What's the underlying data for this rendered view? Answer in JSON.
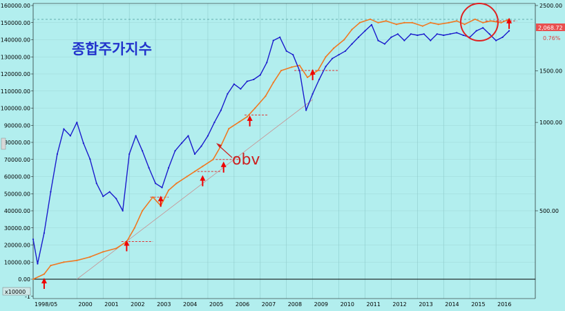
{
  "chart_data": {
    "type": "line",
    "title": "종합주가지수",
    "annotation": "obv",
    "left_axis": {
      "ticks": [
        "160000.00",
        "150000.00",
        "140000.00",
        "130000.00",
        "120000.00",
        "110000.00",
        "100000.00",
        "90000.00",
        "80000.00",
        "70000.00",
        "60000.00",
        "50000.00",
        "40000.00",
        "30000.00",
        "20000.00",
        "10000.00",
        "0.00",
        "-1"
      ],
      "ylim": [
        -10000,
        160000
      ]
    },
    "right_axis": {
      "scale": "log",
      "ticks": [
        "2500.00",
        "1500.00",
        "1000.00",
        "500.00"
      ],
      "tick_values": [
        2500,
        1500,
        1000,
        500
      ],
      "ylim": [
        280,
        2500
      ],
      "last_value": "2,068.72",
      "last_change": "0.76%"
    },
    "x_axis": {
      "ticks": [
        "1998/05",
        "2000",
        "2001",
        "2002",
        "2003",
        "2004",
        "2005",
        "2006",
        "2007",
        "2008",
        "2009",
        "2010",
        "2011",
        "2012",
        "2013",
        "2014",
        "2015",
        "2016"
      ],
      "xlim": [
        1998.33,
        2017.5
      ]
    },
    "unit_label": "x10000",
    "colors": {
      "background": "#b2eeee",
      "price": "#1a1acc",
      "obv": "#f07820",
      "marker": "#ee0000",
      "title": "#2233cc",
      "badge": "#e85050"
    },
    "series": [
      {
        "name": "종합주가지수",
        "axis": "right",
        "color": "#1a1acc",
        "x": [
          1998.33,
          1998.5,
          1998.75,
          1999.0,
          1999.25,
          1999.5,
          1999.75,
          2000.0,
          2000.25,
          2000.5,
          2000.75,
          2001.0,
          2001.25,
          2001.5,
          2001.75,
          2002.0,
          2002.25,
          2002.5,
          2002.75,
          2003.0,
          2003.25,
          2003.5,
          2003.75,
          2004.0,
          2004.25,
          2004.5,
          2004.75,
          2005.0,
          2005.25,
          2005.5,
          2005.75,
          2006.0,
          2006.25,
          2006.5,
          2006.75,
          2007.0,
          2007.25,
          2007.5,
          2007.75,
          2008.0,
          2008.25,
          2008.5,
          2008.75,
          2009.0,
          2009.25,
          2009.5,
          2009.75,
          2010.0,
          2010.25,
          2010.5,
          2010.75,
          2011.0,
          2011.25,
          2011.5,
          2011.75,
          2012.0,
          2012.25,
          2012.5,
          2012.75,
          2013.0,
          2013.25,
          2013.5,
          2013.75,
          2014.0,
          2014.25,
          2014.5,
          2014.75,
          2015.0,
          2015.25,
          2015.5,
          2015.75,
          2016.0,
          2016.25,
          2016.5
        ],
        "values": [
          400,
          330,
          420,
          580,
          780,
          950,
          900,
          1000,
          850,
          750,
          620,
          560,
          580,
          550,
          500,
          780,
          900,
          800,
          700,
          620,
          600,
          700,
          800,
          850,
          900,
          780,
          830,
          900,
          1000,
          1100,
          1250,
          1350,
          1300,
          1380,
          1400,
          1450,
          1600,
          1900,
          1950,
          1750,
          1700,
          1500,
          1100,
          1250,
          1400,
          1550,
          1650,
          1700,
          1750,
          1850,
          1950,
          2050,
          2150,
          1900,
          1850,
          1950,
          2000,
          1900,
          2000,
          1980,
          2000,
          1900,
          2000,
          1980,
          2000,
          2020,
          1980,
          1950,
          2050,
          2100,
          2000,
          1900,
          1950,
          2050
        ]
      },
      {
        "name": "obv",
        "axis": "left",
        "color": "#f07820",
        "x": [
          1998.33,
          1998.75,
          1999.0,
          1999.5,
          2000.0,
          2000.5,
          2001.0,
          2001.5,
          2001.9,
          2002.2,
          2002.5,
          2002.9,
          2003.2,
          2003.5,
          2003.8,
          2004.2,
          2004.5,
          2004.8,
          2005.2,
          2005.5,
          2005.8,
          2006.2,
          2006.5,
          2006.8,
          2007.2,
          2007.5,
          2007.8,
          2008.2,
          2008.5,
          2008.8,
          2009.2,
          2009.5,
          2009.8,
          2010.2,
          2010.5,
          2010.8,
          2011.2,
          2011.5,
          2011.8,
          2012.2,
          2012.5,
          2012.8,
          2013.2,
          2013.5,
          2013.8,
          2014.2,
          2014.5,
          2014.8,
          2015.2,
          2015.5,
          2015.8,
          2016.2,
          2016.5
        ],
        "values": [
          0,
          3000,
          8000,
          10000,
          11000,
          13000,
          16000,
          18000,
          22000,
          30000,
          40000,
          48000,
          43000,
          52000,
          56000,
          60000,
          63000,
          66000,
          70000,
          78000,
          88000,
          92000,
          95000,
          100000,
          107000,
          115000,
          122000,
          124000,
          125000,
          118000,
          122000,
          130000,
          135000,
          140000,
          146000,
          150000,
          152000,
          150000,
          151000,
          149000,
          150000,
          150000,
          148000,
          150000,
          149000,
          150000,
          151000,
          149000,
          152000,
          150000,
          151000,
          150000,
          152000
        ]
      }
    ],
    "trendline": {
      "x": [
        2000.0,
        2009.0
      ],
      "values": [
        0,
        105000
      ]
    },
    "buy_signals": [
      {
        "x": 1998.75,
        "value": 0
      },
      {
        "x": 2001.9,
        "value": 22000
      },
      {
        "x": 2003.2,
        "value": 48000
      },
      {
        "x": 2004.8,
        "value": 60000
      },
      {
        "x": 2005.6,
        "value": 68000
      },
      {
        "x": 2006.6,
        "value": 95000
      },
      {
        "x": 2009.0,
        "value": 122000
      },
      {
        "x": 2016.5,
        "value": 152000
      }
    ],
    "resistance_levels": [
      {
        "x1": 2001.7,
        "x2": 2002.9,
        "value": 22000
      },
      {
        "x1": 2002.8,
        "x2": 2003.5,
        "value": 48000
      },
      {
        "x1": 2004.6,
        "x2": 2005.5,
        "value": 63000
      },
      {
        "x1": 2005.3,
        "x2": 2006.2,
        "value": 70000
      },
      {
        "x1": 2006.4,
        "x2": 2007.3,
        "value": 96000
      },
      {
        "x1": 2008.3,
        "x2": 2010.0,
        "value": 122000
      },
      {
        "x1": 2015.6,
        "x2": 2016.8,
        "value": 151000
      }
    ],
    "grid": true
  }
}
